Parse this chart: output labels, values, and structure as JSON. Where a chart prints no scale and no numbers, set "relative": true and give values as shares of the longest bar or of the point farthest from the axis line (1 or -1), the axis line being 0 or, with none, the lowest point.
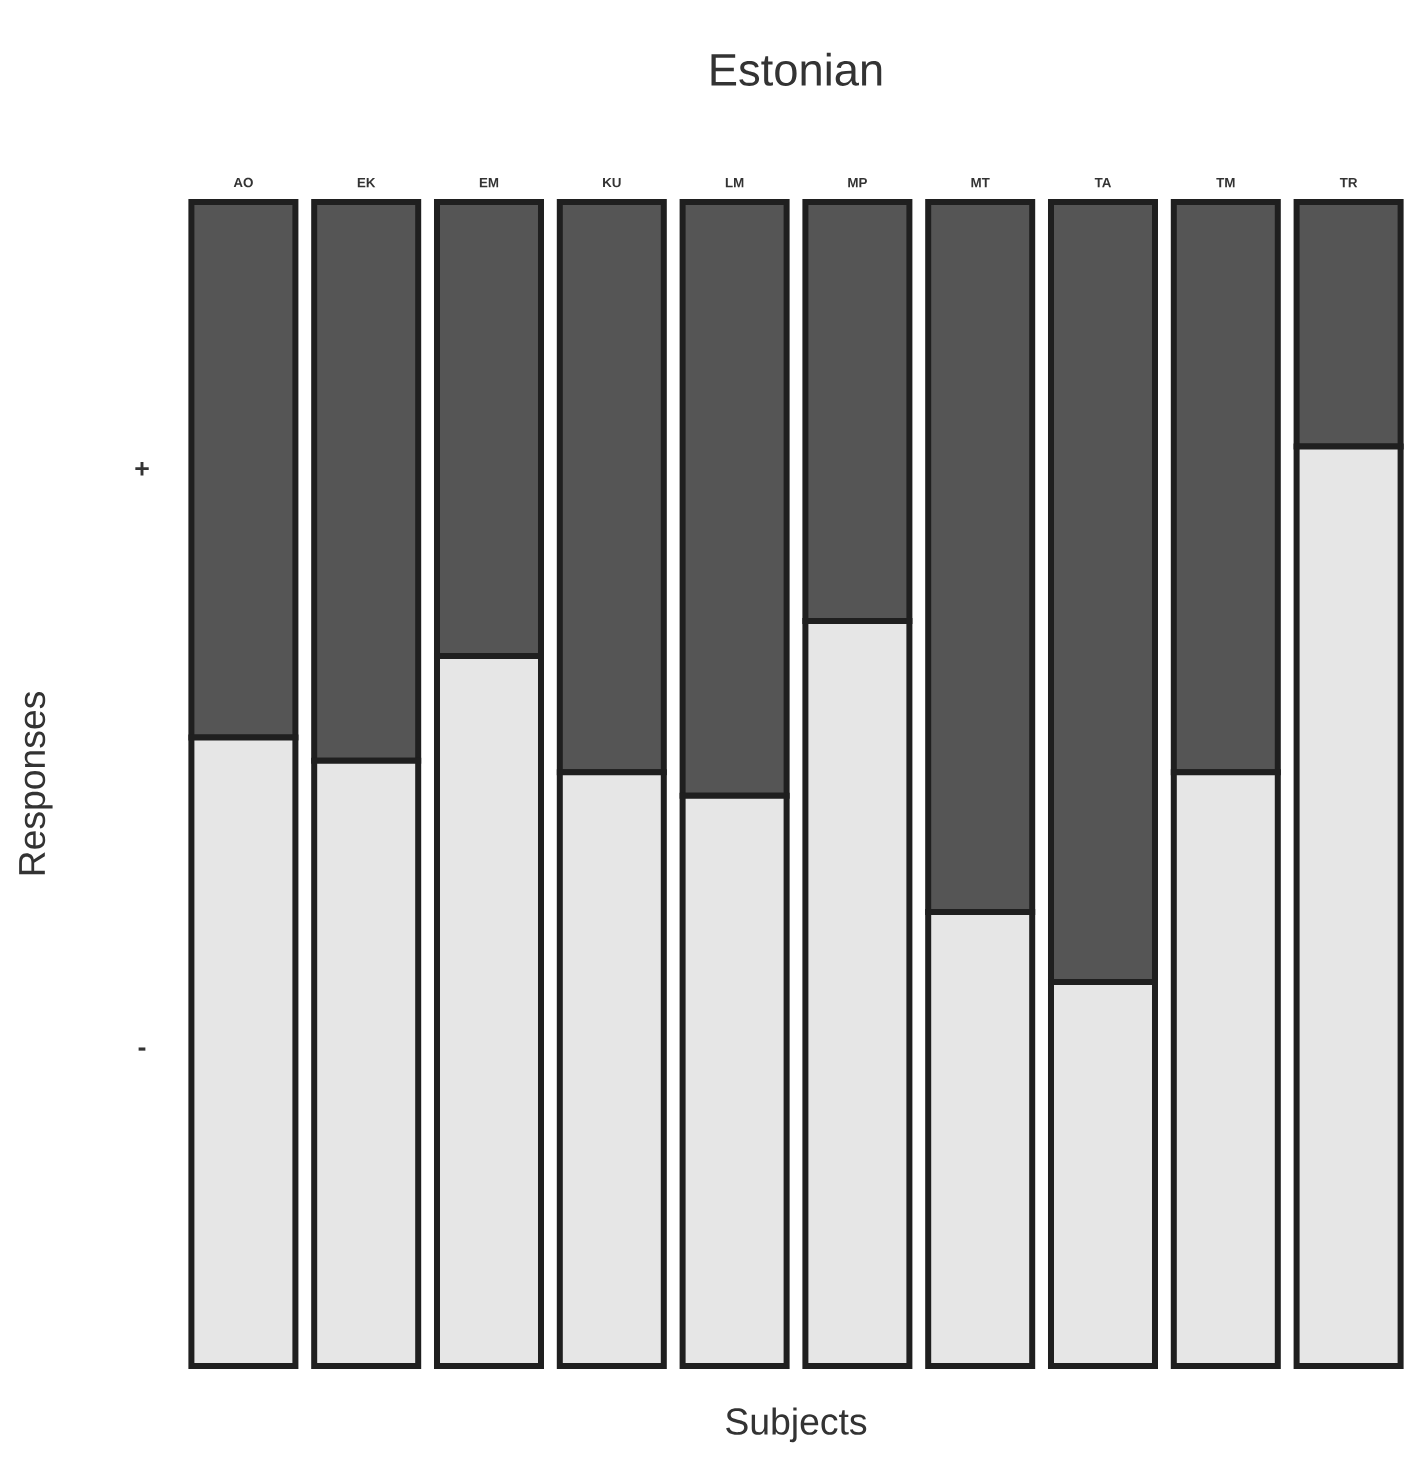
{
  "chart_data": {
    "type": "bar",
    "title": "Estonian",
    "xlabel": "Subjects",
    "ylabel": "Responses",
    "stacked": true,
    "relative": true,
    "categories": [
      "AO",
      "EK",
      "EM",
      "KU",
      "LM",
      "MP",
      "MT",
      "TA",
      "TM",
      "TR"
    ],
    "series": [
      {
        "name": "-",
        "color": "#e6e6e6",
        "values": [
          0.54,
          0.52,
          0.61,
          0.51,
          0.49,
          0.64,
          0.39,
          0.33,
          0.51,
          0.79
        ]
      },
      {
        "name": "+",
        "color": "#555555",
        "values": [
          0.46,
          0.48,
          0.39,
          0.49,
          0.51,
          0.36,
          0.61,
          0.67,
          0.49,
          0.21
        ]
      }
    ]
  }
}
